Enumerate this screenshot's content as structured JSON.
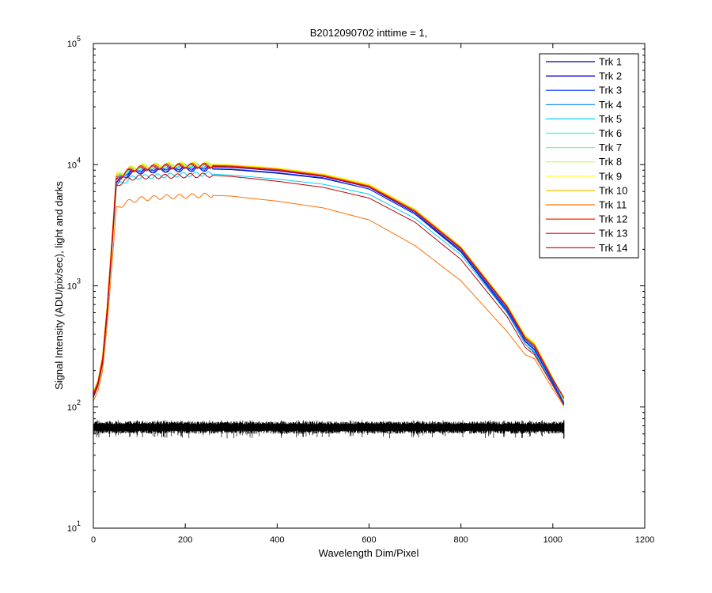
{
  "chart_data": {
    "type": "line",
    "title": "B2012090702 inttime = 1,",
    "xlabel": "Wavelength Dim/Pixel",
    "ylabel": "Signal Intensity (ADU/pix/sec), light and darks",
    "xlim": [
      0,
      1200
    ],
    "ylim": [
      10,
      100000
    ],
    "yscale": "log",
    "grid": false,
    "legend_position": "top-right",
    "x_ticks": [
      "0",
      "200",
      "400",
      "600",
      "800",
      "1000",
      "1200"
    ],
    "y_ticks": [
      {
        "base": "10",
        "exp": "1"
      },
      {
        "base": "10",
        "exp": "2"
      },
      {
        "base": "10",
        "exp": "3"
      },
      {
        "base": "10",
        "exp": "4"
      },
      {
        "base": "10",
        "exp": "5"
      }
    ],
    "x": [
      0,
      10,
      20,
      30,
      40,
      50,
      60,
      80,
      100,
      150,
      200,
      250,
      300,
      400,
      500,
      600,
      700,
      800,
      900,
      940,
      960,
      1000,
      1024
    ],
    "series": [
      {
        "name": "Trk 1",
        "color": "#00008f",
        "values": [
          120,
          150,
          230,
          600,
          2000,
          6900,
          7400,
          8500,
          8700,
          9000,
          9100,
          9200,
          9100,
          8500,
          7700,
          6300,
          3900,
          1900,
          610,
          330,
          280,
          155,
          105
        ]
      },
      {
        "name": "Trk 2",
        "color": "#0000df",
        "values": [
          125,
          155,
          240,
          620,
          2100,
          7300,
          7800,
          8900,
          9100,
          9400,
          9500,
          9600,
          9500,
          8900,
          8000,
          6500,
          4000,
          1950,
          640,
          350,
          300,
          160,
          108
        ]
      },
      {
        "name": "Trk 3",
        "color": "#0030ff",
        "values": [
          122,
          152,
          235,
          610,
          2050,
          7100,
          7600,
          8600,
          8800,
          9000,
          9200,
          9300,
          9200,
          8600,
          7800,
          6300,
          3900,
          1950,
          630,
          345,
          295,
          158,
          106
        ]
      },
      {
        "name": "Trk 4",
        "color": "#0080ff",
        "values": [
          128,
          160,
          250,
          650,
          2200,
          7600,
          8000,
          9000,
          9300,
          9600,
          9800,
          9800,
          9600,
          9000,
          8100,
          6600,
          4100,
          2000,
          660,
          360,
          310,
          165,
          110
        ]
      },
      {
        "name": "Trk 5",
        "color": "#00cfff",
        "values": [
          118,
          148,
          225,
          580,
          1900,
          6600,
          7000,
          7700,
          7900,
          8100,
          8300,
          8400,
          8200,
          7600,
          6900,
          5700,
          3600,
          1800,
          600,
          330,
          285,
          152,
          104
        ]
      },
      {
        "name": "Trk 6",
        "color": "#20ffdf",
        "values": [
          130,
          162,
          255,
          660,
          2250,
          7800,
          8200,
          9200,
          9500,
          9800,
          9900,
          10000,
          9800,
          9200,
          8200,
          6700,
          4200,
          2050,
          680,
          370,
          320,
          170,
          112
        ]
      },
      {
        "name": "Trk 7",
        "color": "#70ff8f",
        "values": [
          132,
          165,
          260,
          680,
          2300,
          8000,
          8400,
          9300,
          9600,
          9900,
          10000,
          10000,
          9900,
          9300,
          8300,
          6800,
          4250,
          2100,
          690,
          380,
          330,
          172,
          114
        ]
      },
      {
        "name": "Trk 8",
        "color": "#bfff40",
        "values": [
          134,
          168,
          265,
          700,
          2350,
          8200,
          8500,
          9400,
          9700,
          10000,
          10100,
          10100,
          10000,
          9400,
          8400,
          6900,
          4300,
          2100,
          700,
          390,
          340,
          175,
          115
        ]
      },
      {
        "name": "Trk 9",
        "color": "#ffff00",
        "values": [
          133,
          166,
          262,
          690,
          2320,
          8100,
          8450,
          9350,
          9650,
          9950,
          10050,
          10050,
          9950,
          9350,
          8350,
          6850,
          4280,
          2100,
          700,
          385,
          335,
          174,
          116
        ]
      },
      {
        "name": "Trk 10",
        "color": "#ffbf00",
        "values": [
          131,
          163,
          258,
          670,
          2280,
          7900,
          8300,
          9200,
          9500,
          9800,
          9950,
          9950,
          9850,
          9250,
          8250,
          6750,
          4250,
          2080,
          690,
          380,
          330,
          172,
          118
        ]
      },
      {
        "name": "Trk 11",
        "color": "#ff7000",
        "values": [
          112,
          135,
          200,
          480,
          1400,
          4300,
          4600,
          5000,
          5200,
          5400,
          5500,
          5600,
          5500,
          5000,
          4400,
          3500,
          2150,
          1100,
          420,
          270,
          250,
          140,
          102
        ]
      },
      {
        "name": "Trk 12",
        "color": "#ff2000",
        "values": [
          129,
          161,
          252,
          655,
          2220,
          7700,
          8100,
          9100,
          9400,
          9700,
          9850,
          9900,
          9750,
          9150,
          8150,
          6650,
          4150,
          2060,
          680,
          375,
          325,
          170,
          120
        ]
      },
      {
        "name": "Trk 13",
        "color": "#df0000",
        "values": [
          126,
          157,
          245,
          640,
          2150,
          7500,
          7900,
          9000,
          9200,
          9500,
          9700,
          9700,
          9600,
          9000,
          8050,
          6550,
          4100,
          2020,
          670,
          365,
          315,
          168,
          118
        ]
      },
      {
        "name": "Trk 14",
        "color": "#c00000",
        "values": [
          120,
          150,
          228,
          590,
          1950,
          6700,
          7100,
          7700,
          7900,
          8000,
          8100,
          8200,
          8000,
          7300,
          6500,
          5300,
          3350,
          1650,
          560,
          310,
          270,
          150,
          104
        ]
      }
    ],
    "darks": {
      "color": "#000000",
      "x_range": [
        0,
        1024
      ],
      "typical_range": [
        60,
        76
      ],
      "min": 55,
      "max": 78
    }
  }
}
